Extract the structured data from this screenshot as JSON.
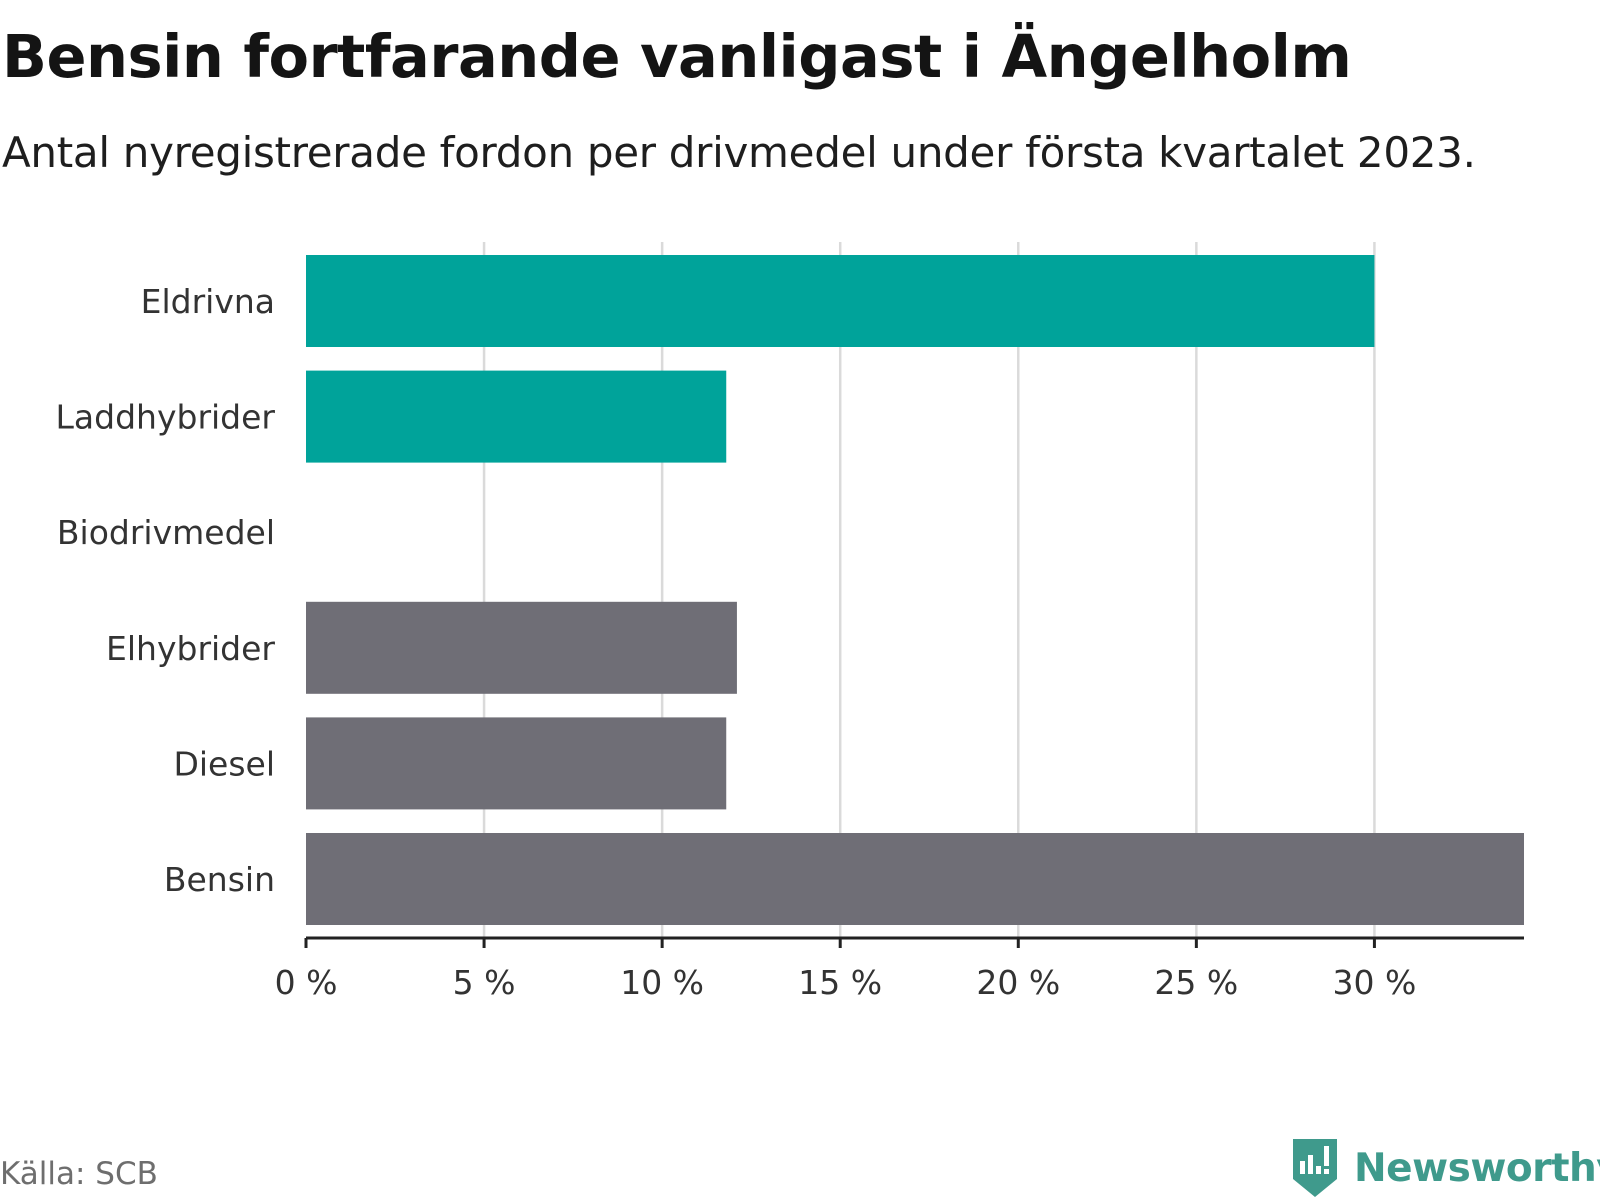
{
  "title": "Bensin fortfarande vanligast i Ängelholm",
  "subtitle": "Antal nyregistrerade fordon per drivmedel under första kvartalet 2023.",
  "source": "Källa: SCB",
  "brand": {
    "name": "Newsworthy",
    "icon": "newsworthy-logo-icon"
  },
  "colors": {
    "highlight": "#00a39a",
    "other": "#6f6e76",
    "grid": "#dadada",
    "axis": "#222222",
    "text": "#333333"
  },
  "chart_data": {
    "type": "bar",
    "orientation": "horizontal",
    "categories": [
      "Eldrivna",
      "Laddhybrider",
      "Biodrivmedel",
      "Elhybrider",
      "Diesel",
      "Bensin"
    ],
    "values": [
      30.0,
      11.8,
      0,
      12.1,
      11.8,
      34.2
    ],
    "highlighted": [
      true,
      true,
      true,
      false,
      false,
      false
    ],
    "xticks": [
      "0 %",
      "5 %",
      "10 %",
      "15 %",
      "20 %",
      "25 %",
      "30 %"
    ],
    "xtick_values": [
      0,
      5,
      10,
      15,
      20,
      25,
      30
    ],
    "xlim": [
      0,
      34.2
    ],
    "xlabel": "",
    "ylabel": "",
    "grid": true
  }
}
